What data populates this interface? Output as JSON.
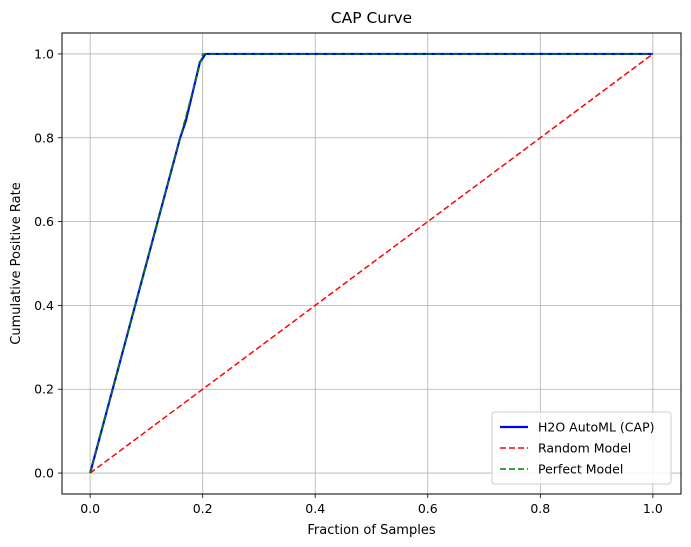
{
  "chart_data": {
    "type": "line",
    "title": "CAP Curve",
    "xlabel": "Fraction of Samples",
    "ylabel": "Cumulative Positive Rate",
    "xlim": [
      -0.05,
      1.05
    ],
    "ylim": [
      -0.05,
      1.05
    ],
    "xticks": [
      0.0,
      0.2,
      0.4,
      0.6,
      0.8,
      1.0
    ],
    "yticks": [
      0.0,
      0.2,
      0.4,
      0.6,
      0.8,
      1.0
    ],
    "xtick_labels": [
      "0.0",
      "0.2",
      "0.4",
      "0.6",
      "0.8",
      "1.0"
    ],
    "ytick_labels": [
      "0.0",
      "0.2",
      "0.4",
      "0.6",
      "0.8",
      "1.0"
    ],
    "grid": true,
    "legend_position": "bottom-right",
    "series": [
      {
        "name": "H2O AutoML (CAP)",
        "color": "#0000ff",
        "style": "solid",
        "x": [
          0.0,
          0.16,
          0.17,
          0.195,
          0.2,
          0.205,
          1.0
        ],
        "y": [
          0.0,
          0.8,
          0.84,
          0.98,
          0.99,
          1.0,
          1.0
        ]
      },
      {
        "name": "Random Model",
        "color": "#ff0000",
        "style": "dashed",
        "x": [
          0.0,
          1.0
        ],
        "y": [
          0.0,
          1.0
        ]
      },
      {
        "name": "Perfect Model",
        "color": "#008000",
        "style": "dashed",
        "x": [
          0.0,
          0.2,
          1.0
        ],
        "y": [
          0.0,
          1.0,
          1.0
        ]
      }
    ]
  }
}
